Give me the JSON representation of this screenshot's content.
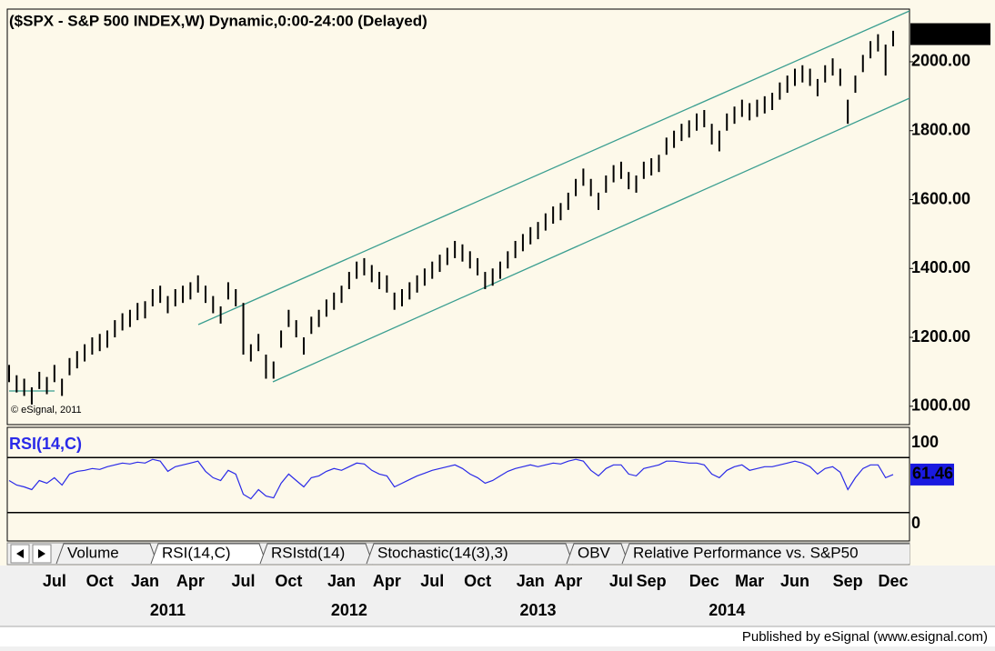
{
  "header": {
    "title": "($SPX - S&P 500 INDEX,W) Dynamic,0:00-24:00 (Delayed)",
    "watermark": "© eSignal, 2011"
  },
  "chart_data": [
    {
      "type": "ohlc",
      "color": "#000000",
      "categories": [
        null,
        null,
        null,
        null,
        null,
        null,
        "Jul",
        null,
        null,
        null,
        null,
        null,
        "Oct",
        null,
        null,
        null,
        null,
        null,
        "Jan",
        null,
        null,
        null,
        null,
        null,
        "Apr",
        null,
        null,
        null,
        null,
        null,
        null,
        "Jul",
        null,
        null,
        null,
        null,
        null,
        "Oct",
        null,
        null,
        null,
        null,
        null,
        null,
        "Jan",
        null,
        null,
        null,
        null,
        null,
        "Apr",
        null,
        null,
        null,
        null,
        null,
        "Jul",
        null,
        null,
        null,
        null,
        null,
        "Oct",
        null,
        null,
        null,
        null,
        null,
        null,
        "Jan",
        null,
        null,
        null,
        null,
        "Apr",
        null,
        null,
        null,
        null,
        null,
        null,
        "Jul",
        null,
        null,
        null,
        "Sep",
        null,
        null,
        null,
        null,
        null,
        null,
        "Dec",
        null,
        null,
        null,
        null,
        null,
        "Mar",
        null,
        null,
        null,
        null,
        null,
        "Jun",
        null,
        null,
        null,
        null,
        null,
        null,
        "Sep",
        null,
        null,
        null,
        null,
        null,
        "Dec"
      ],
      "years": [
        null,
        null,
        null,
        null,
        null,
        null,
        null,
        null,
        null,
        null,
        null,
        null,
        null,
        null,
        null,
        null,
        null,
        null,
        null,
        null,
        null,
        "2011",
        null,
        null,
        null,
        null,
        null,
        null,
        null,
        null,
        null,
        null,
        null,
        null,
        null,
        null,
        null,
        null,
        null,
        null,
        null,
        null,
        null,
        null,
        null,
        "2012",
        null,
        null,
        null,
        null,
        null,
        null,
        null,
        null,
        null,
        null,
        null,
        null,
        null,
        null,
        null,
        null,
        null,
        null,
        null,
        null,
        null,
        null,
        null,
        null,
        "2013",
        null,
        null,
        null,
        null,
        null,
        null,
        null,
        null,
        null,
        null,
        null,
        null,
        null,
        null,
        null,
        null,
        null,
        null,
        null,
        null,
        null,
        null,
        null,
        null,
        "2014",
        null,
        null,
        null,
        null,
        null,
        null,
        null,
        null,
        null,
        null,
        null,
        null,
        null,
        null,
        null,
        null,
        null,
        null,
        null,
        null,
        null,
        null
      ],
      "high": [
        1120,
        1090,
        1080,
        1055,
        1100,
        1085,
        1120,
        1080,
        1140,
        1160,
        1180,
        1200,
        1210,
        1220,
        1250,
        1270,
        1280,
        1300,
        1305,
        1340,
        1350,
        1320,
        1340,
        1350,
        1360,
        1380,
        1350,
        1320,
        1290,
        1360,
        1340,
        1300,
        1180,
        1210,
        1150,
        1130,
        1220,
        1280,
        1250,
        1200,
        1260,
        1280,
        1310,
        1330,
        1350,
        1390,
        1420,
        1430,
        1410,
        1390,
        1380,
        1330,
        1340,
        1360,
        1380,
        1400,
        1420,
        1440,
        1460,
        1480,
        1470,
        1450,
        1430,
        1390,
        1400,
        1420,
        1450,
        1480,
        1500,
        1520,
        1535,
        1560,
        1580,
        1590,
        1620,
        1660,
        1690,
        1660,
        1620,
        1670,
        1700,
        1710,
        1680,
        1670,
        1710,
        1720,
        1730,
        1780,
        1800,
        1820,
        1830,
        1850,
        1860,
        1820,
        1800,
        1850,
        1870,
        1890,
        1880,
        1890,
        1900,
        1910,
        1940,
        1960,
        1980,
        1990,
        1980,
        1950,
        1990,
        2010,
        1980,
        1890,
        1960,
        2020,
        2060,
        2080,
        2050,
        2090
      ],
      "low": [
        1070,
        1040,
        1030,
        1005,
        1050,
        1035,
        1070,
        1030,
        1090,
        1110,
        1130,
        1150,
        1160,
        1170,
        1200,
        1220,
        1230,
        1250,
        1255,
        1290,
        1300,
        1270,
        1290,
        1300,
        1310,
        1330,
        1300,
        1270,
        1240,
        1310,
        1290,
        1150,
        1130,
        1160,
        1080,
        1080,
        1170,
        1230,
        1200,
        1150,
        1210,
        1230,
        1260,
        1280,
        1300,
        1340,
        1370,
        1380,
        1360,
        1340,
        1330,
        1280,
        1290,
        1310,
        1330,
        1350,
        1370,
        1390,
        1410,
        1430,
        1420,
        1400,
        1380,
        1340,
        1350,
        1370,
        1400,
        1430,
        1450,
        1470,
        1485,
        1510,
        1530,
        1540,
        1570,
        1610,
        1640,
        1610,
        1570,
        1620,
        1650,
        1660,
        1630,
        1620,
        1660,
        1670,
        1680,
        1730,
        1750,
        1770,
        1780,
        1800,
        1810,
        1760,
        1740,
        1800,
        1820,
        1840,
        1830,
        1840,
        1850,
        1860,
        1890,
        1910,
        1930,
        1940,
        1930,
        1900,
        1940,
        1960,
        1930,
        1820,
        1910,
        1970,
        2010,
        2030,
        1960,
        2045
      ],
      "ylim": [
        952,
        2153
      ],
      "yticks": [
        {
          "value": 1000,
          "label": "1000.00"
        },
        {
          "value": 1200,
          "label": "1200.00"
        },
        {
          "value": 1400,
          "label": "1400.00"
        },
        {
          "value": 1600,
          "label": "1600.00"
        },
        {
          "value": 1800,
          "label": "1800.00"
        },
        {
          "value": 2000,
          "label": "2000.00"
        }
      ],
      "last_value": 2080.35
    },
    {
      "type": "line",
      "title": "RSI(14,C)",
      "color": "#2a2ae8",
      "values": [
        55,
        50,
        48,
        45,
        55,
        52,
        58,
        50,
        62,
        65,
        66,
        68,
        67,
        70,
        72,
        74,
        73,
        75,
        74,
        78,
        76,
        65,
        70,
        72,
        74,
        76,
        65,
        58,
        55,
        66,
        62,
        40,
        35,
        45,
        38,
        36,
        52,
        62,
        55,
        48,
        58,
        60,
        65,
        68,
        66,
        70,
        74,
        73,
        66,
        62,
        60,
        48,
        52,
        56,
        60,
        63,
        66,
        68,
        70,
        72,
        68,
        62,
        58,
        52,
        55,
        60,
        65,
        68,
        70,
        72,
        70,
        72,
        74,
        73,
        76,
        78,
        76,
        66,
        60,
        68,
        72,
        72,
        62,
        60,
        68,
        70,
        72,
        76,
        76,
        75,
        74,
        74,
        72,
        62,
        58,
        66,
        70,
        72,
        66,
        68,
        70,
        70,
        72,
        74,
        76,
        74,
        70,
        62,
        68,
        70,
        64,
        45,
        58,
        68,
        72,
        72,
        58,
        61.46
      ],
      "ylim": [
        0,
        100
      ],
      "yticks": [
        0,
        100
      ],
      "levels": [
        20,
        80
      ],
      "last_value": 61.46
    }
  ],
  "tabs": [
    "Volume",
    "RSI(14,C)",
    "RSIstd(14)",
    "Stochastic(14(3),3)",
    "OBV",
    "Relative Performance vs. S&P50"
  ],
  "footer": "Published by eSignal (www.esignal.com)"
}
